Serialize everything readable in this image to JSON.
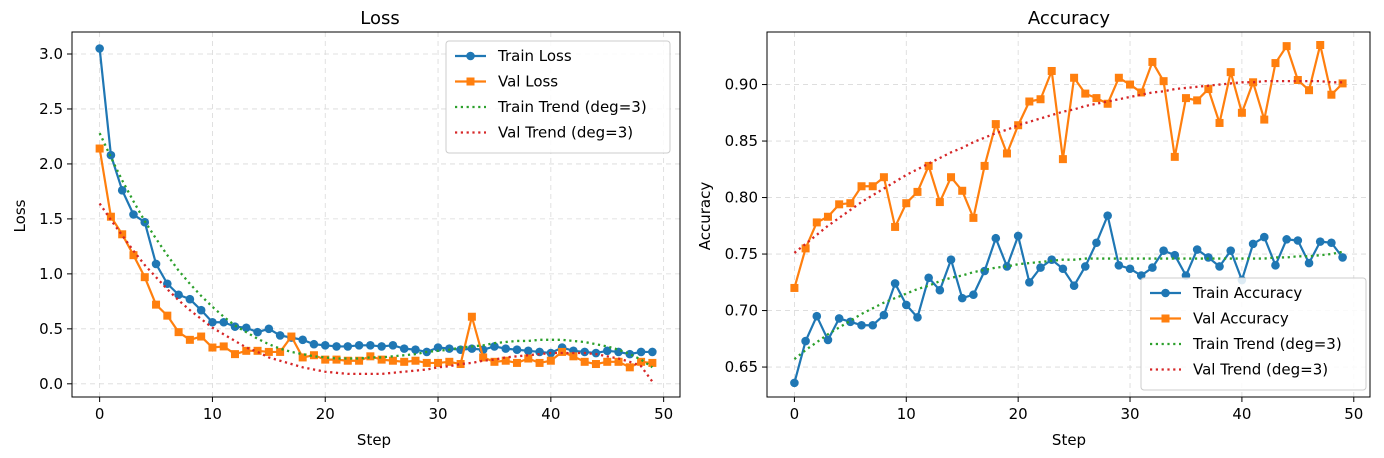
{
  "chart_data": [
    {
      "type": "line",
      "title": "Loss",
      "xlabel": "Step",
      "ylabel": "Loss",
      "xlim": [
        -2.45,
        51.45
      ],
      "ylim": [
        -0.12,
        3.2
      ],
      "xticks": [
        0,
        10,
        20,
        30,
        40,
        50
      ],
      "yticks": [
        0.0,
        0.5,
        1.0,
        1.5,
        2.0,
        2.5,
        3.0
      ],
      "ytick_format": 1,
      "grid": true,
      "legend": "top-right",
      "x": [
        0,
        1,
        2,
        3,
        4,
        5,
        6,
        7,
        8,
        9,
        10,
        11,
        12,
        13,
        14,
        15,
        16,
        17,
        18,
        19,
        20,
        21,
        22,
        23,
        24,
        25,
        26,
        27,
        28,
        29,
        30,
        31,
        32,
        33,
        34,
        35,
        36,
        37,
        38,
        39,
        40,
        41,
        42,
        43,
        44,
        45,
        46,
        47,
        48,
        49
      ],
      "series": [
        {
          "name": "Train Loss",
          "color": "#1f77b4",
          "style": "solid",
          "marker": "circle",
          "values": [
            3.05,
            2.08,
            1.76,
            1.54,
            1.47,
            1.09,
            0.91,
            0.81,
            0.77,
            0.67,
            0.56,
            0.56,
            0.52,
            0.51,
            0.47,
            0.5,
            0.44,
            0.42,
            0.4,
            0.36,
            0.35,
            0.34,
            0.34,
            0.35,
            0.35,
            0.34,
            0.35,
            0.32,
            0.31,
            0.29,
            0.33,
            0.32,
            0.31,
            0.32,
            0.31,
            0.34,
            0.32,
            0.31,
            0.3,
            0.29,
            0.28,
            0.33,
            0.3,
            0.29,
            0.28,
            0.3,
            0.29,
            0.27,
            0.29,
            0.29
          ]
        },
        {
          "name": "Val Loss",
          "color": "#ff7f0e",
          "style": "solid",
          "marker": "square",
          "values": [
            2.14,
            1.52,
            1.36,
            1.17,
            0.97,
            0.72,
            0.62,
            0.47,
            0.4,
            0.43,
            0.33,
            0.34,
            0.27,
            0.3,
            0.3,
            0.29,
            0.29,
            0.43,
            0.24,
            0.26,
            0.22,
            0.22,
            0.21,
            0.21,
            0.25,
            0.22,
            0.21,
            0.2,
            0.21,
            0.19,
            0.19,
            0.2,
            0.18,
            0.61,
            0.24,
            0.2,
            0.21,
            0.19,
            0.23,
            0.19,
            0.21,
            0.29,
            0.25,
            0.2,
            0.18,
            0.2,
            0.2,
            0.15,
            0.2,
            0.19
          ]
        },
        {
          "name": "Train Trend (deg=3)",
          "color": "#2ca02c",
          "style": "dotted",
          "marker": "none",
          "values": [
            2.28,
            2.06,
            1.85,
            1.66,
            1.48,
            1.32,
            1.17,
            1.03,
            0.91,
            0.8,
            0.7,
            0.61,
            0.53,
            0.47,
            0.41,
            0.36,
            0.32,
            0.29,
            0.27,
            0.25,
            0.24,
            0.23,
            0.23,
            0.23,
            0.24,
            0.24,
            0.25,
            0.26,
            0.27,
            0.29,
            0.3,
            0.31,
            0.33,
            0.34,
            0.35,
            0.37,
            0.38,
            0.39,
            0.39,
            0.4,
            0.4,
            0.4,
            0.39,
            0.38,
            0.36,
            0.34,
            0.31,
            0.27,
            0.22,
            0.15
          ]
        },
        {
          "name": "Val Trend (deg=3)",
          "color": "#d62728",
          "style": "dotted",
          "marker": "none",
          "values": [
            1.64,
            1.49,
            1.35,
            1.21,
            1.08,
            0.97,
            0.86,
            0.76,
            0.67,
            0.59,
            0.51,
            0.45,
            0.39,
            0.33,
            0.29,
            0.24,
            0.21,
            0.18,
            0.15,
            0.13,
            0.11,
            0.1,
            0.09,
            0.09,
            0.09,
            0.09,
            0.1,
            0.11,
            0.12,
            0.13,
            0.15,
            0.16,
            0.18,
            0.19,
            0.21,
            0.22,
            0.24,
            0.25,
            0.26,
            0.27,
            0.28,
            0.28,
            0.28,
            0.28,
            0.27,
            0.25,
            0.23,
            0.2,
            0.16,
            0.02
          ]
        }
      ]
    },
    {
      "type": "line",
      "title": "Accuracy",
      "xlabel": "Step",
      "ylabel": "Accuracy",
      "xlim": [
        -2.45,
        51.45
      ],
      "ylim": [
        0.6235,
        0.9465
      ],
      "xticks": [
        0,
        10,
        20,
        30,
        40,
        50
      ],
      "yticks": [
        0.65,
        0.7,
        0.75,
        0.8,
        0.85,
        0.9
      ],
      "ytick_format": 2,
      "grid": true,
      "legend": "bottom-right",
      "x": [
        0,
        1,
        2,
        3,
        4,
        5,
        6,
        7,
        8,
        9,
        10,
        11,
        12,
        13,
        14,
        15,
        16,
        17,
        18,
        19,
        20,
        21,
        22,
        23,
        24,
        25,
        26,
        27,
        28,
        29,
        30,
        31,
        32,
        33,
        34,
        35,
        36,
        37,
        38,
        39,
        40,
        41,
        42,
        43,
        44,
        45,
        46,
        47,
        48,
        49
      ],
      "series": [
        {
          "name": "Train Accuracy",
          "color": "#1f77b4",
          "style": "solid",
          "marker": "circle",
          "values": [
            0.636,
            0.673,
            0.695,
            0.674,
            0.693,
            0.69,
            0.687,
            0.687,
            0.696,
            0.724,
            0.705,
            0.694,
            0.729,
            0.718,
            0.745,
            0.711,
            0.714,
            0.735,
            0.764,
            0.739,
            0.766,
            0.725,
            0.738,
            0.745,
            0.737,
            0.722,
            0.739,
            0.76,
            0.784,
            0.74,
            0.737,
            0.731,
            0.738,
            0.753,
            0.749,
            0.731,
            0.754,
            0.747,
            0.739,
            0.753,
            0.727,
            0.759,
            0.765,
            0.74,
            0.763,
            0.762,
            0.742,
            0.761,
            0.76,
            0.747
          ]
        },
        {
          "name": "Val Accuracy",
          "color": "#ff7f0e",
          "style": "solid",
          "marker": "square",
          "values": [
            0.72,
            0.755,
            0.778,
            0.783,
            0.794,
            0.795,
            0.81,
            0.81,
            0.818,
            0.774,
            0.795,
            0.805,
            0.828,
            0.796,
            0.818,
            0.806,
            0.782,
            0.828,
            0.865,
            0.839,
            0.864,
            0.885,
            0.887,
            0.912,
            0.834,
            0.906,
            0.892,
            0.888,
            0.883,
            0.906,
            0.9,
            0.893,
            0.92,
            0.903,
            0.836,
            0.888,
            0.886,
            0.896,
            0.866,
            0.911,
            0.875,
            0.902,
            0.869,
            0.919,
            0.934,
            0.904,
            0.895,
            0.935,
            0.891,
            0.901
          ]
        },
        {
          "name": "Train Trend (deg=3)",
          "color": "#2ca02c",
          "style": "dotted",
          "marker": "none",
          "values": [
            0.657,
            0.665,
            0.672,
            0.679,
            0.685,
            0.691,
            0.697,
            0.702,
            0.707,
            0.711,
            0.715,
            0.719,
            0.722,
            0.726,
            0.729,
            0.731,
            0.734,
            0.736,
            0.738,
            0.739,
            0.741,
            0.742,
            0.743,
            0.744,
            0.745,
            0.745,
            0.746,
            0.746,
            0.746,
            0.746,
            0.746,
            0.746,
            0.746,
            0.746,
            0.746,
            0.746,
            0.746,
            0.746,
            0.746,
            0.746,
            0.746,
            0.746,
            0.746,
            0.747,
            0.747,
            0.748,
            0.748,
            0.749,
            0.75,
            0.752
          ]
        },
        {
          "name": "Val Trend (deg=3)",
          "color": "#d62728",
          "style": "dotted",
          "marker": "none",
          "values": [
            0.751,
            0.759,
            0.767,
            0.775,
            0.782,
            0.789,
            0.796,
            0.802,
            0.808,
            0.814,
            0.82,
            0.825,
            0.83,
            0.835,
            0.84,
            0.844,
            0.849,
            0.853,
            0.857,
            0.86,
            0.864,
            0.867,
            0.87,
            0.873,
            0.876,
            0.878,
            0.881,
            0.883,
            0.885,
            0.887,
            0.889,
            0.891,
            0.893,
            0.894,
            0.896,
            0.897,
            0.898,
            0.899,
            0.9,
            0.901,
            0.902,
            0.902,
            0.903,
            0.903,
            0.903,
            0.903,
            0.903,
            0.903,
            0.902,
            0.902
          ]
        }
      ]
    }
  ]
}
